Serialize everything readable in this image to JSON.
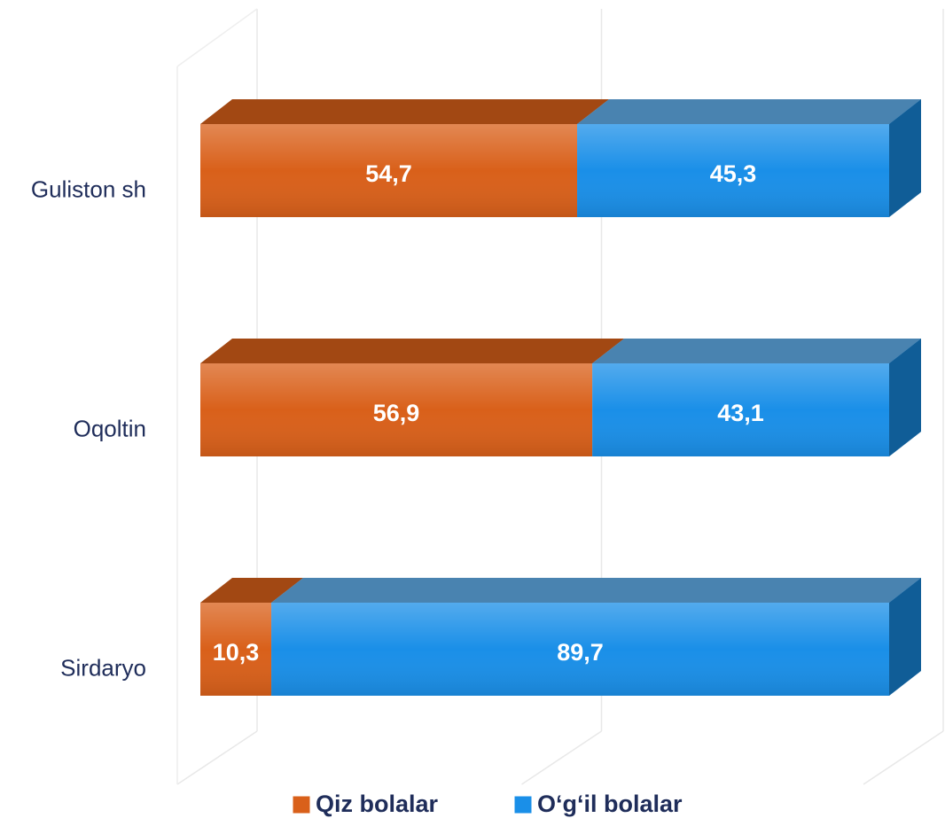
{
  "chart_data": {
    "type": "stacked-bar-3d",
    "categories": [
      "Guliston sh",
      "Oqoltin",
      "Sirdaryo"
    ],
    "series": [
      {
        "name": "Qiz bolalar",
        "color": "#d9601a",
        "values": [
          54.7,
          56.9,
          10.3
        ],
        "value_labels": [
          "54,7",
          "56,9",
          "10,3"
        ]
      },
      {
        "name": "O‘g‘il bolalar",
        "color": "#1a8fe8",
        "values": [
          45.3,
          43.1,
          89.7
        ],
        "value_labels": [
          "45,3",
          "43,1",
          "89,7"
        ]
      }
    ],
    "xlim": [
      0,
      100
    ],
    "xticks": [
      0,
      50,
      100
    ],
    "grid": true,
    "legend": "bottom"
  }
}
